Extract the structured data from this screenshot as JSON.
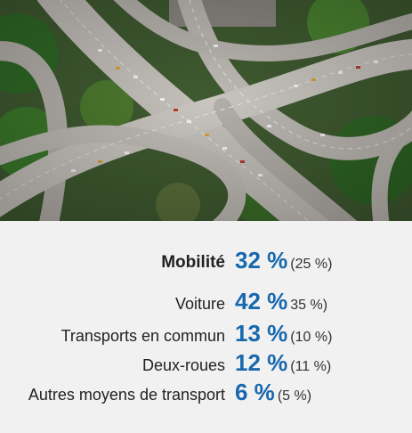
{
  "photo": {
    "subject": "aerial-highway-interchange"
  },
  "rows": [
    {
      "label": "Mobilité",
      "value": "32 %",
      "previous": "(25 %)"
    },
    {
      "label": "Voiture",
      "value": "42 %",
      "previous": "35 %)"
    },
    {
      "label": "Transports en commun",
      "value": "13 %",
      "previous": "(10 %)"
    },
    {
      "label": "Deux-roues",
      "value": "12 %",
      "previous": "(11 %)"
    },
    {
      "label": "Autres moyens de transport",
      "value": "6 %",
      "previous": "(5 %)"
    }
  ],
  "colors": {
    "accent": "#1868ad",
    "panel": "#f1f1f1"
  }
}
